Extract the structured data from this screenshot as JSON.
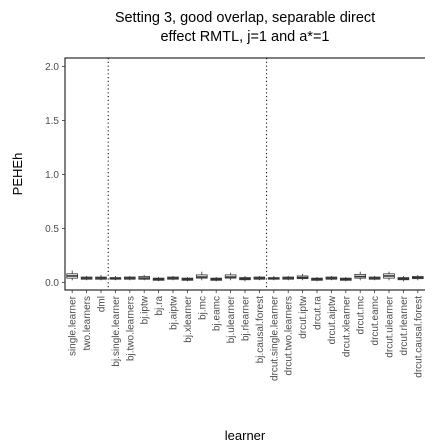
{
  "chart_data": {
    "type": "box",
    "title_lines": [
      "Setting 3, good overlap, separable direct",
      "effect RMTL, j=1 and a*=1"
    ],
    "xlabel": "learner",
    "ylabel": "PEHEh",
    "ylim": [
      -0.07,
      2.08
    ],
    "yticks": [
      0.0,
      0.5,
      1.0,
      1.5,
      2.0
    ],
    "ytick_labels": [
      "0.0",
      "0.5",
      "1.0",
      "1.5",
      "2.0"
    ],
    "grid": false,
    "vlines_after_category": [
      "dml",
      "bj.causal.forest"
    ],
    "categories": [
      "single.learner",
      "two.learners",
      "dml",
      "bj.single.learner",
      "bj.two.learners",
      "bj.iptw",
      "bj.ra",
      "bj.aiptw",
      "bj.xlearner",
      "bj.mc",
      "bj.eamc",
      "bj.ulearner",
      "bj.rlearner",
      "bj.causal.forest",
      "drcut.single.learner",
      "drcut.two.learners",
      "drcut.iptw",
      "drcut.ra",
      "drcut.aiptw",
      "drcut.xlearner",
      "drcut.mc",
      "drcut.eamc",
      "drcut.ulearner",
      "drcut.rlearner",
      "drcut.causal.forest"
    ],
    "boxes": [
      {
        "min": 0.02,
        "q1": 0.04,
        "median": 0.06,
        "q3": 0.08,
        "max": 0.11
      },
      {
        "min": 0.02,
        "q1": 0.03,
        "median": 0.04,
        "q3": 0.05,
        "max": 0.06
      },
      {
        "min": 0.02,
        "q1": 0.03,
        "median": 0.04,
        "q3": 0.05,
        "max": 0.07
      },
      {
        "min": 0.02,
        "q1": 0.03,
        "median": 0.035,
        "q3": 0.045,
        "max": 0.06
      },
      {
        "min": 0.02,
        "q1": 0.03,
        "median": 0.04,
        "q3": 0.05,
        "max": 0.06
      },
      {
        "min": 0.02,
        "q1": 0.03,
        "median": 0.04,
        "q3": 0.055,
        "max": 0.07
      },
      {
        "min": 0.01,
        "q1": 0.02,
        "median": 0.03,
        "q3": 0.04,
        "max": 0.05
      },
      {
        "min": 0.02,
        "q1": 0.03,
        "median": 0.04,
        "q3": 0.05,
        "max": 0.06
      },
      {
        "min": 0.01,
        "q1": 0.02,
        "median": 0.03,
        "q3": 0.04,
        "max": 0.05
      },
      {
        "min": 0.02,
        "q1": 0.04,
        "median": 0.05,
        "q3": 0.07,
        "max": 0.1
      },
      {
        "min": 0.01,
        "q1": 0.02,
        "median": 0.03,
        "q3": 0.04,
        "max": 0.05
      },
      {
        "min": 0.02,
        "q1": 0.04,
        "median": 0.05,
        "q3": 0.07,
        "max": 0.09
      },
      {
        "min": 0.01,
        "q1": 0.025,
        "median": 0.035,
        "q3": 0.045,
        "max": 0.06
      },
      {
        "min": 0.02,
        "q1": 0.03,
        "median": 0.04,
        "q3": 0.05,
        "max": 0.06
      },
      {
        "min": 0.02,
        "q1": 0.03,
        "median": 0.035,
        "q3": 0.045,
        "max": 0.06
      },
      {
        "min": 0.02,
        "q1": 0.03,
        "median": 0.04,
        "q3": 0.05,
        "max": 0.06
      },
      {
        "min": 0.02,
        "q1": 0.035,
        "median": 0.045,
        "q3": 0.06,
        "max": 0.08
      },
      {
        "min": 0.01,
        "q1": 0.02,
        "median": 0.03,
        "q3": 0.04,
        "max": 0.05
      },
      {
        "min": 0.02,
        "q1": 0.03,
        "median": 0.04,
        "q3": 0.05,
        "max": 0.06
      },
      {
        "min": 0.01,
        "q1": 0.02,
        "median": 0.03,
        "q3": 0.04,
        "max": 0.05
      },
      {
        "min": 0.02,
        "q1": 0.04,
        "median": 0.055,
        "q3": 0.075,
        "max": 0.1
      },
      {
        "min": 0.02,
        "q1": 0.03,
        "median": 0.04,
        "q3": 0.05,
        "max": 0.06
      },
      {
        "min": 0.02,
        "q1": 0.04,
        "median": 0.06,
        "q3": 0.08,
        "max": 0.1
      },
      {
        "min": 0.01,
        "q1": 0.025,
        "median": 0.035,
        "q3": 0.045,
        "max": 0.06
      },
      {
        "min": 0.02,
        "q1": 0.035,
        "median": 0.045,
        "q3": 0.055,
        "max": 0.07
      }
    ],
    "colors": {
      "box_fill": "#ffffff",
      "box_line": "#333333",
      "frame": "#000000",
      "vline": "#000000",
      "tick_text": "#4d4d4d"
    }
  }
}
